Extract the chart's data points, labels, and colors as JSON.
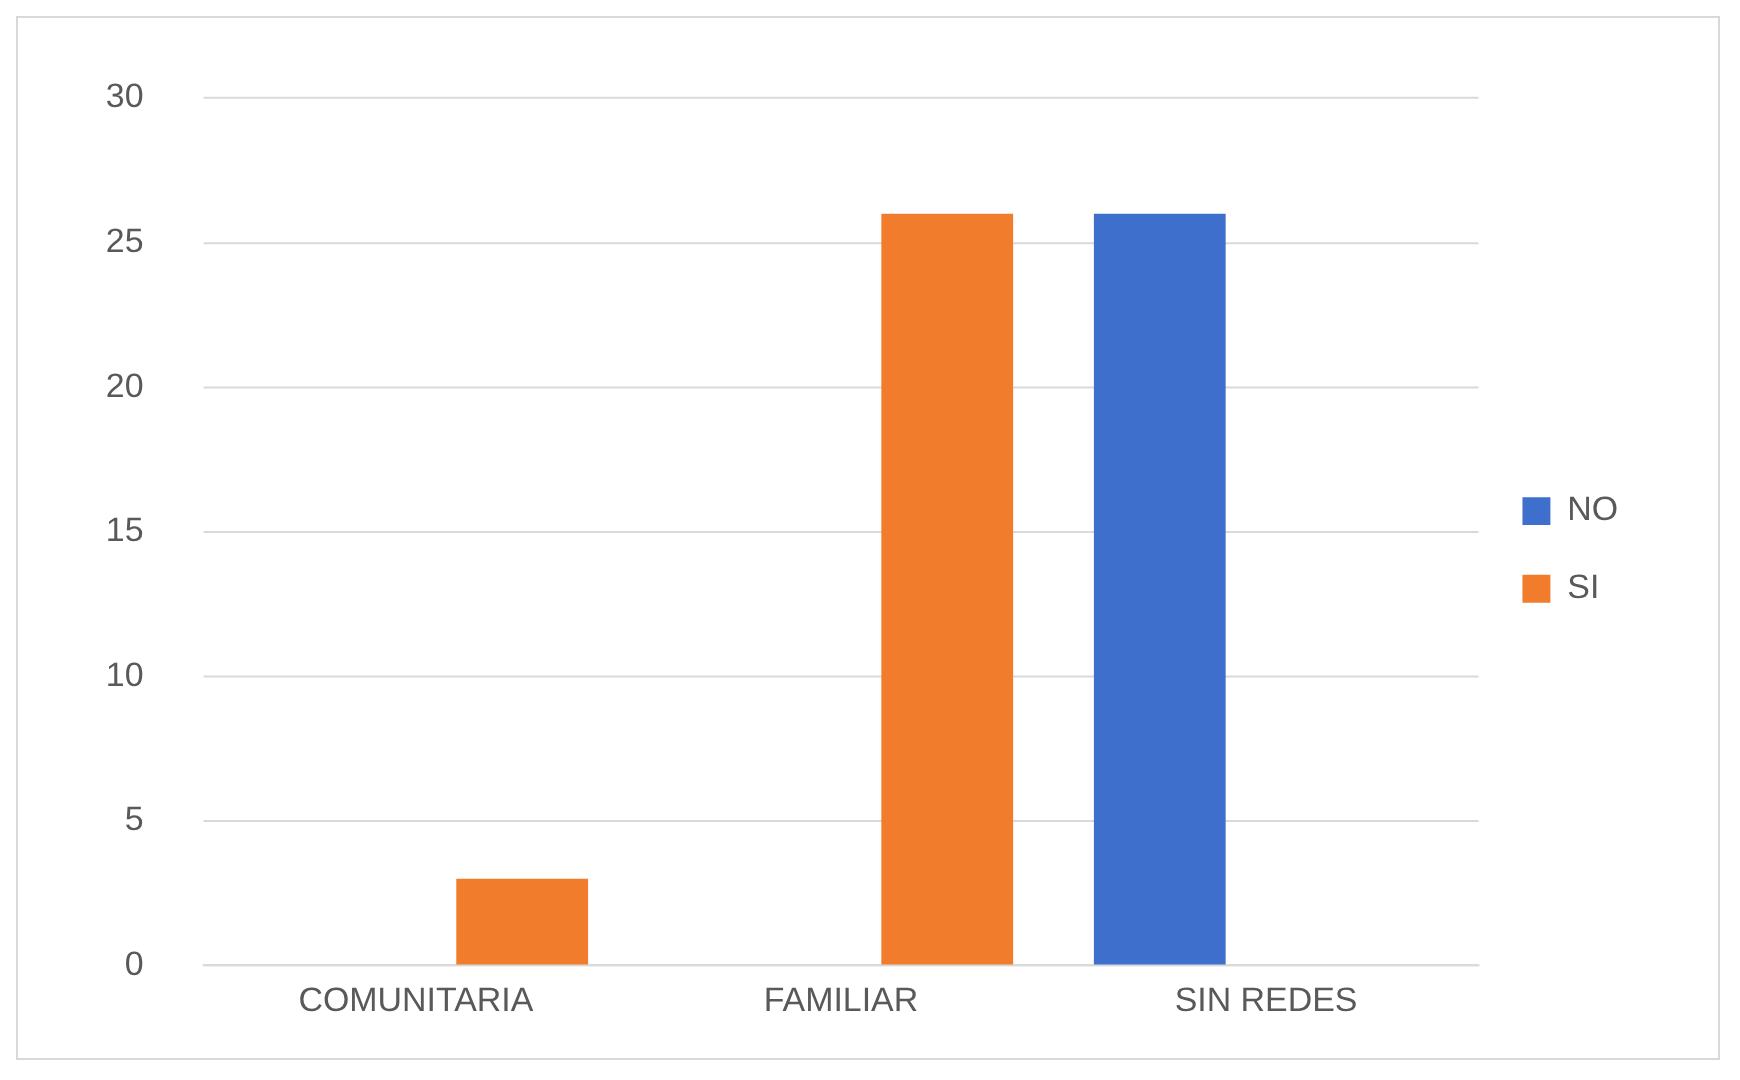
{
  "chart_data": {
    "type": "bar",
    "categories": [
      "COMUNITARIA",
      "FAMILIAR",
      "SIN REDES"
    ],
    "series": [
      {
        "name": "NO",
        "color": "#3f6fcc",
        "values": [
          0,
          0,
          26
        ]
      },
      {
        "name": "SI",
        "color": "#f07c2c",
        "values": [
          3,
          26,
          0
        ]
      }
    ],
    "ylim": [
      0,
      30
    ],
    "yticks": [
      0,
      5,
      10,
      15,
      20,
      25,
      30
    ],
    "grid": "y",
    "legend": "right"
  }
}
